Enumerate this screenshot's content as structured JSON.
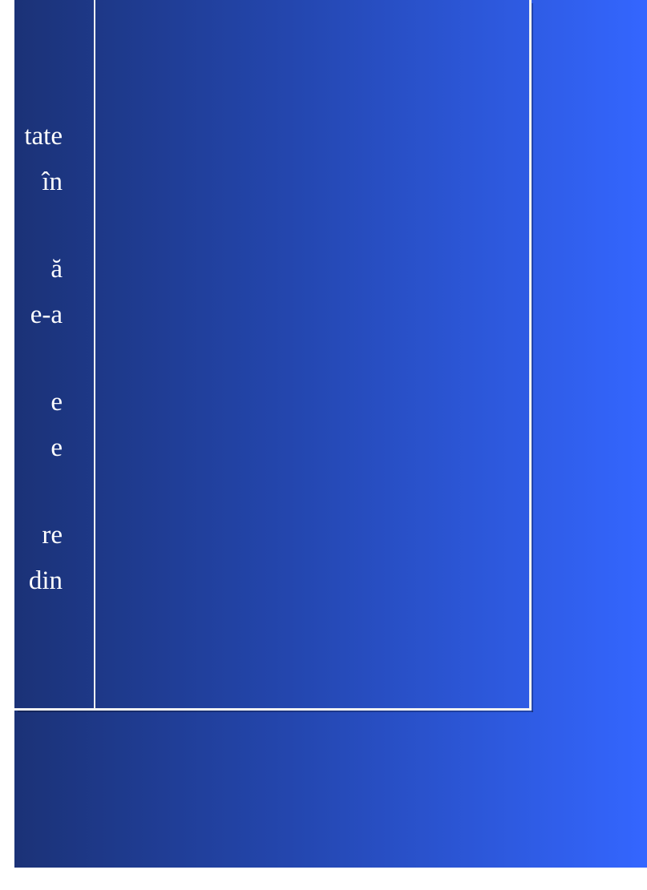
{
  "slide": {
    "gradient": [
      "#1b3277",
      "#2447b0",
      "#3466ff"
    ],
    "frame_color": "#f2f2f2",
    "text_color": "#ffffff",
    "text_fragments": [
      "tate",
      "în",
      "ă",
      "e-a",
      "e",
      "e",
      "re",
      "din"
    ]
  }
}
